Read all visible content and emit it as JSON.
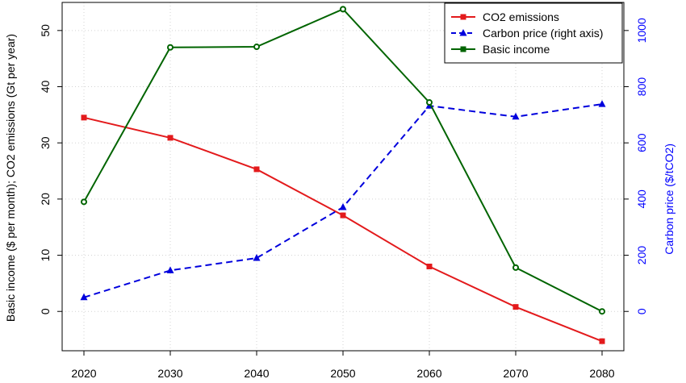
{
  "chart_data": {
    "type": "line",
    "x": [
      2020,
      2030,
      2040,
      2050,
      2060,
      2070,
      2080
    ],
    "xlim": [
      2020,
      2080
    ],
    "left_axis": {
      "label": "Basic income ($ per month); CO2 emissions (Gt per year)",
      "ylim": [
        -7,
        55
      ],
      "ticks": [
        0,
        10,
        20,
        30,
        40,
        50
      ],
      "color": "#000000"
    },
    "right_axis": {
      "label": "Carbon price ($/tCO2)",
      "ylim": [
        -140,
        1100
      ],
      "ticks": [
        0,
        200,
        400,
        600,
        800,
        1000
      ],
      "color": "#0000ff"
    },
    "grid": true,
    "legend_position": "top-right",
    "series": [
      {
        "name": "CO2 emissions",
        "axis": "left",
        "color": "#e31a1c",
        "line_style": "solid",
        "marker": "square",
        "values": [
          34.5,
          30.9,
          25.3,
          17.1,
          8.0,
          0.8,
          -5.3
        ]
      },
      {
        "name": "Carbon price (right axis)",
        "axis": "right",
        "color": "#0000dd",
        "line_style": "dashed",
        "marker": "triangle",
        "values": [
          50,
          146,
          190,
          371,
          732,
          693,
          738
        ]
      },
      {
        "name": "Basic income",
        "axis": "left",
        "color": "#006400",
        "line_style": "solid",
        "marker": "circle",
        "values": [
          19.5,
          47.0,
          47.1,
          53.8,
          37.2,
          7.8,
          0.0
        ]
      }
    ]
  }
}
